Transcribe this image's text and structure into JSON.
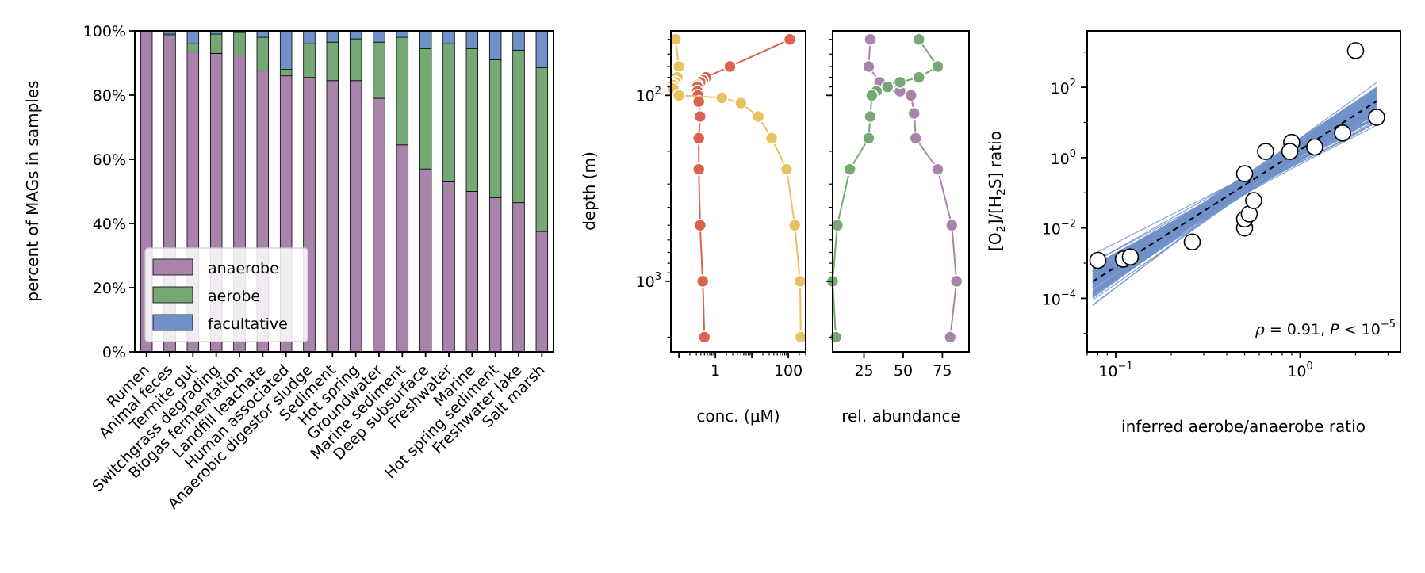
{
  "colors": {
    "anaerobe": "#a884ac",
    "aerobe": "#76a874",
    "facultative": "#7090c8",
    "red_profile": "#d9634e",
    "yellow_profile": "#e8c162",
    "ensemble": "#7090c8"
  },
  "chart_data": [
    {
      "id": "panel_a",
      "type": "bar",
      "stacked": true,
      "ylabel": "percent of MAGs in samples",
      "ylim": [
        0,
        100
      ],
      "yticks": [
        "0%",
        "20%",
        "40%",
        "60%",
        "80%",
        "100%"
      ],
      "categories": [
        "Rumen",
        "Animal feces",
        "Termite gut",
        "Switchgrass degrading",
        "Biogas fermentation",
        "Landfill leachate",
        "Human associated",
        "Anaerobic digestor sludge",
        "Sediment",
        "Hot spring",
        "Groundwater",
        "Marine sediment",
        "Deep subsurface",
        "Freshwater",
        "Marine",
        "Hot spring sediment",
        "Freshwater lake",
        "Salt marsh"
      ],
      "legend": {
        "placement": "lower-left",
        "entries": [
          "anaerobe",
          "aerobe",
          "facultative"
        ]
      },
      "series": [
        {
          "name": "anaerobe",
          "values": [
            100,
            98.5,
            93.5,
            93,
            92.5,
            87.5,
            86,
            85.5,
            84.5,
            84.5,
            79,
            64.5,
            57,
            53,
            50,
            48,
            46.5,
            37.5
          ]
        },
        {
          "name": "aerobe",
          "values": [
            0,
            0.5,
            2.5,
            6,
            7,
            10.5,
            2,
            10.5,
            12,
            13,
            17.5,
            33.5,
            37.5,
            43,
            44.5,
            43,
            47.5,
            51
          ]
        },
        {
          "name": "facultative",
          "values": [
            0,
            1,
            4,
            1,
            0.5,
            2,
            12,
            4,
            3.5,
            2.5,
            3.5,
            2,
            5.5,
            4,
            5.5,
            9,
            6,
            11.5
          ]
        }
      ]
    },
    {
      "id": "panel_b",
      "type": "line",
      "xlabel": "conc. (μM)",
      "ylabel": "depth (m)",
      "xscale": "log",
      "yscale": "log",
      "yinverted": true,
      "xlim": [
        0.06,
        300
      ],
      "ylim": [
        45,
        2400
      ],
      "xticks": [
        "1",
        "100"
      ],
      "yticks": [
        "10^2",
        "10^3"
      ],
      "series": [
        {
          "color_key": "red_profile",
          "x": [
            110,
            2.5,
            0.55,
            0.45,
            0.38,
            0.32,
            0.32,
            0.32,
            0.33,
            0.35,
            0.38,
            0.35,
            0.35,
            0.38,
            0.45,
            0.5
          ],
          "y": [
            50,
            70,
            80,
            83,
            85,
            88,
            90,
            95,
            100,
            108,
            130,
            170,
            250,
            500,
            1000,
            2000
          ]
        },
        {
          "color_key": "yellow_profile",
          "x": [
            0.08,
            0.1,
            0.09,
            0.08,
            0.07,
            0.07,
            0.1,
            1.5,
            5,
            15,
            35,
            90,
            150,
            210,
            220
          ],
          "y": [
            50,
            70,
            80,
            85,
            88,
            92,
            100,
            103,
            110,
            130,
            170,
            250,
            500,
            1000,
            2000
          ]
        }
      ]
    },
    {
      "id": "panel_c",
      "type": "line",
      "xlabel": "rel. abundance",
      "yscale": "log",
      "yinverted": true,
      "xlim": [
        5,
        92
      ],
      "ylim": [
        45,
        2400
      ],
      "xticks": [
        "25",
        "50",
        "75"
      ],
      "series": [
        {
          "color_key": "anaerobe",
          "x": [
            29,
            28,
            35,
            45,
            48,
            55,
            57,
            58,
            72,
            81,
            84,
            80
          ],
          "y": [
            50,
            70,
            85,
            90,
            95,
            100,
            125,
            170,
            250,
            500,
            1000,
            2000
          ]
        },
        {
          "color_key": "aerobe",
          "x": [
            60,
            72,
            60,
            48,
            40,
            33,
            30,
            29,
            28,
            16,
            8,
            5,
            7
          ],
          "y": [
            50,
            70,
            80,
            85,
            90,
            95,
            100,
            130,
            170,
            250,
            500,
            1000,
            2000
          ]
        }
      ]
    },
    {
      "id": "panel_d",
      "type": "scatter",
      "xlabel": "inferred aerobe/anaerobe ratio",
      "ylabel": "[O₂]/[H₂S] ratio",
      "xscale": "log",
      "yscale": "log",
      "xlim": [
        0.07,
        3.5
      ],
      "ylim": [
        3e-06,
        4000
      ],
      "xticks": [
        "10^-1",
        "10^0"
      ],
      "yticks": [
        "10^-4",
        "10^-2",
        "10^0",
        "10^2"
      ],
      "annotation": "ρ = 0.91, P < 10^-5",
      "fit": {
        "x0": 0.075,
        "y0": 0.0003,
        "x1": 2.6,
        "y1": 40
      },
      "x": [
        0.08,
        0.11,
        0.12,
        0.26,
        0.5,
        0.5,
        0.53,
        0.56,
        0.5,
        0.65,
        0.9,
        0.88,
        1.2,
        1.7,
        2.0,
        2.6
      ],
      "y": [
        0.0012,
        0.0013,
        0.0015,
        0.004,
        0.01,
        0.018,
        0.025,
        0.06,
        0.35,
        1.5,
        2.7,
        1.5,
        2.0,
        5.0,
        1100,
        14
      ]
    }
  ]
}
